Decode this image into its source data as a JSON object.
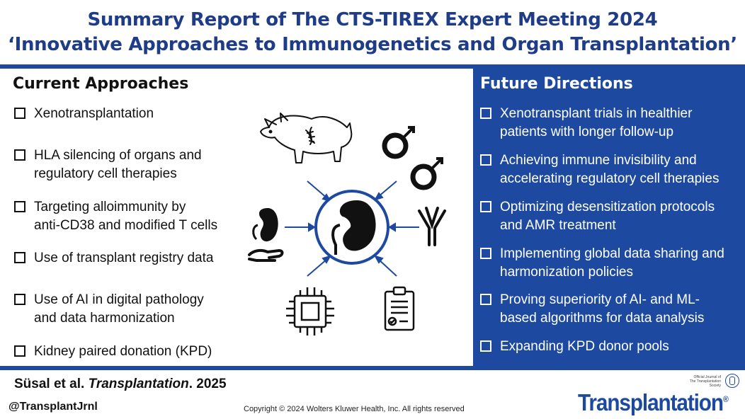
{
  "title": {
    "line1": "Summary Report of The CTS-TIREX Expert Meeting 2024",
    "line2": "‘Innovative Approaches to Immunogenetics and Organ Transplantation’"
  },
  "current": {
    "heading": "Current Approaches",
    "items": [
      {
        "line1": "Xenotransplantation",
        "line2": ""
      },
      {
        "line1": "HLA silencing of organs and",
        "line2": "regulatory cell therapies"
      },
      {
        "line1": "Targeting alloimmunity by",
        "line2": "anti-CD38 and modified T cells"
      },
      {
        "line1": "Use of transplant registry data",
        "line2": ""
      },
      {
        "line1": "Use of AI in digital pathology",
        "line2": "and data harmonization"
      },
      {
        "line1": "Kidney paired donation (KPD)",
        "line2": ""
      }
    ]
  },
  "future": {
    "heading": "Future Directions",
    "items": [
      {
        "line1": "Xenotransplant trials in healthier",
        "line2": "patients with longer follow-up"
      },
      {
        "line1": "Achieving immune invisibility and",
        "line2": "accelerating regulatory cell therapies"
      },
      {
        "line1": "Optimizing desensitization protocols",
        "line2": "and AMR treatment"
      },
      {
        "line1": "Implementing global data sharing and",
        "line2": "harmonization policies"
      },
      {
        "line1": "Proving superiority of AI- and ML-",
        "line2": "based algorithms for data analysis"
      },
      {
        "line1": "Expanding KPD donor pools",
        "line2": ""
      }
    ]
  },
  "icons": [
    "pig-dna-icon",
    "sex-symbols-icon",
    "kidney-icon",
    "kidney-in-hand-icon",
    "antibody-icon",
    "microchip-icon",
    "clipboard-icon"
  ],
  "footer": {
    "authors": "Süsal et al.",
    "journal": "Transplantation",
    "year": ". 2025",
    "handle": "@TransplantJrnl",
    "copyright": "Copyright © 2024 Wolters Kluwer Health, Inc. All rights reserved",
    "brand": "Transplantation",
    "brand_reg": "®",
    "brand_tag_line1": "Official Journal of",
    "brand_tag_line2": "The Transplantation Society"
  },
  "colors": {
    "accent": "#1d4aa0",
    "title": "#1f3c88"
  }
}
